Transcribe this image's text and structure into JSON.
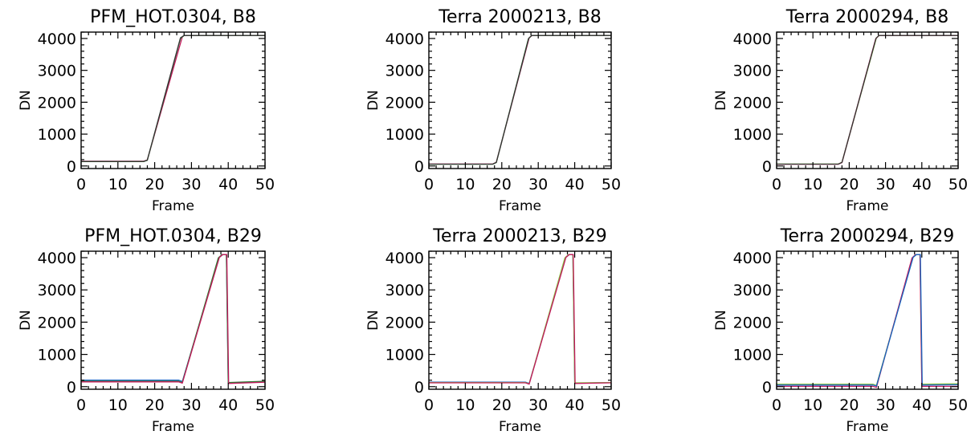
{
  "chart_data": [
    {
      "type": "line",
      "title": "PFM_HOT.0304, B8",
      "xlabel": "Frame",
      "ylabel": "DN",
      "xlim": [
        0,
        50
      ],
      "ylim": [
        -80,
        4200
      ],
      "xticks": [
        0,
        10,
        20,
        30,
        40,
        50
      ],
      "yticks": [
        0,
        1000,
        2000,
        3000,
        4000
      ],
      "series": [
        {
          "color": "#c2185b",
          "x": [
            0,
            17,
            18,
            27.5,
            28,
            50
          ],
          "y": [
            150,
            150,
            190,
            4050,
            4095,
            4095
          ]
        },
        {
          "color": "#2e7d32",
          "x": [
            0,
            17,
            18,
            27,
            28,
            50
          ],
          "y": [
            140,
            140,
            180,
            4000,
            4095,
            4095
          ]
        },
        {
          "color": "#333333",
          "x": [
            0,
            17,
            18,
            27,
            28,
            50
          ],
          "y": [
            145,
            145,
            185,
            4020,
            4095,
            4095
          ]
        }
      ]
    },
    {
      "type": "line",
      "title": "Terra 2000213, B8",
      "xlabel": "Frame",
      "ylabel": "DN",
      "xlim": [
        0,
        50
      ],
      "ylim": [
        -80,
        4200
      ],
      "xticks": [
        0,
        10,
        20,
        30,
        40,
        50
      ],
      "yticks": [
        0,
        1000,
        2000,
        3000,
        4000
      ],
      "series": [
        {
          "color": "#c2185b",
          "x": [
            0,
            17.5,
            18.5,
            27.5,
            28.3,
            50
          ],
          "y": [
            60,
            60,
            120,
            4020,
            4095,
            4095
          ]
        },
        {
          "color": "#2e7d32",
          "x": [
            0,
            17.5,
            18.5,
            27.3,
            28.2,
            50
          ],
          "y": [
            55,
            55,
            110,
            3990,
            4095,
            4095
          ]
        },
        {
          "color": "#333333",
          "x": [
            0,
            17.5,
            18.5,
            27.4,
            28.2,
            50
          ],
          "y": [
            58,
            58,
            115,
            4005,
            4095,
            4095
          ]
        }
      ]
    },
    {
      "type": "line",
      "title": "Terra 2000294, B8",
      "xlabel": "Frame",
      "ylabel": "DN",
      "xlim": [
        0,
        50
      ],
      "ylim": [
        -80,
        4200
      ],
      "xticks": [
        0,
        10,
        20,
        30,
        40,
        50
      ],
      "yticks": [
        0,
        1000,
        2000,
        3000,
        4000
      ],
      "series": [
        {
          "color": "#8bc34a",
          "x": [
            0,
            17,
            18,
            27.5,
            28.3,
            50
          ],
          "y": [
            60,
            60,
            120,
            4020,
            4095,
            4095
          ]
        },
        {
          "color": "#c2185b",
          "x": [
            0,
            17,
            18,
            27.3,
            28.2,
            50
          ],
          "y": [
            55,
            55,
            110,
            3990,
            4095,
            4095
          ]
        },
        {
          "color": "#333333",
          "x": [
            0,
            17,
            18,
            27.4,
            28.2,
            50
          ],
          "y": [
            58,
            58,
            115,
            4005,
            4095,
            4095
          ]
        }
      ]
    },
    {
      "type": "line",
      "title": "PFM_HOT.0304, B29",
      "xlabel": "Frame",
      "ylabel": "DN",
      "xlim": [
        0,
        50
      ],
      "ylim": [
        -80,
        4200
      ],
      "xticks": [
        0,
        10,
        20,
        30,
        40,
        50
      ],
      "yticks": [
        0,
        1000,
        2000,
        3000,
        4000
      ],
      "series": [
        {
          "color": "#1565c0",
          "x": [
            0,
            26.5,
            27.5,
            37.5,
            38.5,
            39.5,
            40,
            50
          ],
          "y": [
            200,
            200,
            160,
            4000,
            4095,
            4095,
            120,
            160
          ]
        },
        {
          "color": "#2e7d32",
          "x": [
            0,
            26.5,
            27.5,
            37.3,
            38.3,
            39.5,
            40,
            50
          ],
          "y": [
            170,
            170,
            130,
            3990,
            4095,
            4095,
            130,
            170
          ]
        },
        {
          "color": "#c2185b",
          "x": [
            0,
            26.5,
            27.5,
            37.6,
            38.5,
            39.6,
            40.1,
            50
          ],
          "y": [
            150,
            150,
            110,
            4010,
            4095,
            4095,
            100,
            140
          ]
        }
      ]
    },
    {
      "type": "line",
      "title": "Terra 2000213, B29",
      "xlabel": "Frame",
      "ylabel": "DN",
      "xlim": [
        0,
        50
      ],
      "ylim": [
        -80,
        4200
      ],
      "xticks": [
        0,
        10,
        20,
        30,
        40,
        50
      ],
      "yticks": [
        0,
        1000,
        2000,
        3000,
        4000
      ],
      "series": [
        {
          "color": "#1565c0",
          "x": [
            0,
            26.5,
            27.5,
            37.5,
            38.5,
            39.5,
            40,
            50
          ],
          "y": [
            140,
            140,
            100,
            4000,
            4095,
            4095,
            110,
            130
          ]
        },
        {
          "color": "#8bc34a",
          "x": [
            0,
            26.5,
            27.5,
            37.3,
            38.3,
            39.5,
            40,
            50
          ],
          "y": [
            130,
            130,
            90,
            3990,
            4095,
            4095,
            120,
            130
          ]
        },
        {
          "color": "#c2185b",
          "x": [
            0,
            26.5,
            27.5,
            37.6,
            38.5,
            39.6,
            40.1,
            50
          ],
          "y": [
            120,
            120,
            80,
            4010,
            4095,
            4095,
            100,
            120
          ]
        }
      ]
    },
    {
      "type": "line",
      "title": "Terra 2000294, B29",
      "xlabel": "Frame",
      "ylabel": "DN",
      "xlim": [
        0,
        50
      ],
      "ylim": [
        -80,
        4200
      ],
      "xticks": [
        0,
        10,
        20,
        30,
        40,
        50
      ],
      "yticks": [
        0,
        1000,
        2000,
        3000,
        4000
      ],
      "series": [
        {
          "color": "#8bc34a",
          "x": [
            0,
            26.5,
            27.5,
            37.5,
            38.5,
            39.5,
            40,
            50
          ],
          "y": [
            80,
            80,
            40,
            4000,
            4095,
            4095,
            80,
            90
          ]
        },
        {
          "color": "#c2185b",
          "x": [
            0,
            26.5,
            27.5,
            37.3,
            38.3,
            39.5,
            40,
            50
          ],
          "y": [
            10,
            10,
            -20,
            3990,
            4095,
            4095,
            10,
            10
          ]
        },
        {
          "color": "#1565c0",
          "x": [
            0,
            26.5,
            27.5,
            37.6,
            38.5,
            39.6,
            40.1,
            50
          ],
          "y": [
            50,
            50,
            20,
            4010,
            4095,
            4095,
            50,
            60
          ]
        }
      ]
    }
  ]
}
